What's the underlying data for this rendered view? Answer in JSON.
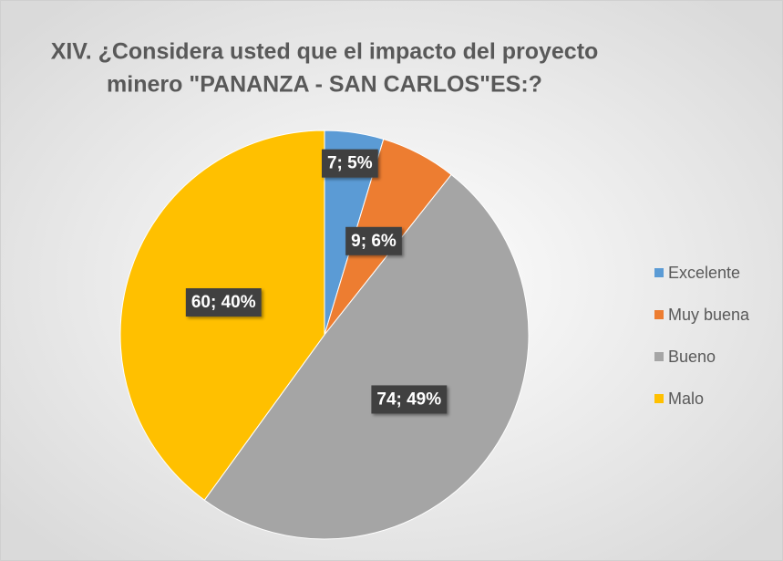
{
  "chart_data": {
    "type": "pie",
    "title": [
      "XIV. ¿Considera usted que el impacto del proyecto",
      "minero \"PANANZA - SAN CARLOS\"ES:?"
    ],
    "categories": [
      "Excelente",
      "Muy buena",
      "Bueno",
      "Malo"
    ],
    "values": [
      7,
      9,
      74,
      60
    ],
    "value_labels": [
      "7; 5%",
      "9; 6%",
      "74; 49%",
      "60; 40%"
    ],
    "colors": [
      "#5b9bd5",
      "#ed7d31",
      "#a5a5a5",
      "#ffc000"
    ],
    "legend": "right"
  }
}
